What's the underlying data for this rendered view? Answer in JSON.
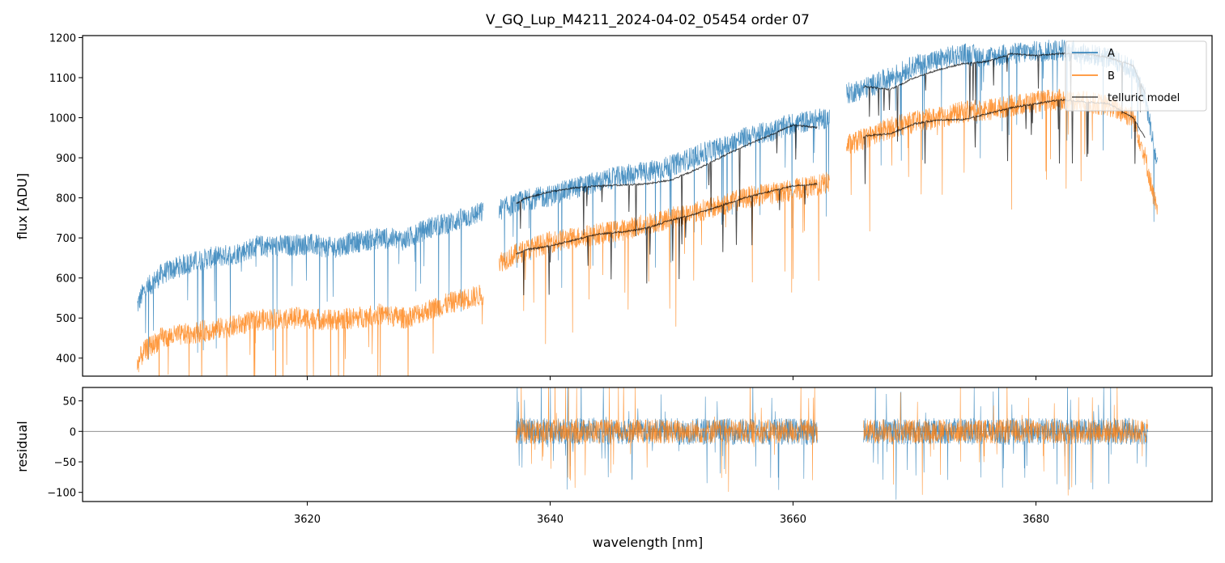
{
  "chart_data": [
    {
      "type": "line",
      "title": "V_GQ_Lup_M4211_2024-04-02_05454  order 07",
      "xlabel": "",
      "ylabel": "flux [ADU]",
      "xlim": [
        3601.5,
        3694.5
      ],
      "ylim": [
        355,
        1205
      ],
      "x_ticks": [
        3620,
        3640,
        3660,
        3680
      ],
      "y_ticks": [
        400,
        500,
        600,
        700,
        800,
        900,
        1000,
        1100,
        1200
      ],
      "y_tick_labels": [
        "400",
        "500",
        "600",
        "700",
        "800",
        "900",
        "1000",
        "1100",
        "1200"
      ],
      "grid": false,
      "legend_position": "top-right",
      "series": [
        {
          "name": "A",
          "color": "#1f77b4",
          "segments": [
            {
              "x": [
                3606.0,
                3606.5,
                3608.0,
                3610.0,
                3612.0,
                3614.0,
                3616.0,
                3618.0,
                3620.0,
                3622.0,
                3624.0,
                3626.0,
                3628.0,
                3630.0,
                3632.0,
                3634.0,
                3634.5
              ],
              "y": [
                530,
                565,
                610,
                635,
                650,
                660,
                680,
                680,
                685,
                675,
                690,
                700,
                695,
                725,
                740,
                760,
                765
              ]
            },
            {
              "x": [
                3635.8,
                3638.0,
                3640.0,
                3642.0,
                3644.0,
                3646.0,
                3648.0,
                3650.0,
                3652.0,
                3654.0,
                3656.0,
                3658.0,
                3660.0,
                3662.0,
                3663.0
              ],
              "y": [
                770,
                795,
                805,
                825,
                840,
                855,
                865,
                880,
                905,
                925,
                950,
                965,
                985,
                995,
                1000
              ]
            },
            {
              "x": [
                3664.4,
                3666.0,
                3668.0,
                3670.0,
                3672.0,
                3674.0,
                3676.0,
                3678.0,
                3680.0,
                3682.0,
                3684.0,
                3686.0,
                3688.0,
                3689.0,
                3690.0
              ],
              "y": [
                1060,
                1075,
                1100,
                1130,
                1145,
                1160,
                1150,
                1160,
                1165,
                1170,
                1160,
                1150,
                1120,
                1050,
                880
              ]
            }
          ]
        },
        {
          "name": "B",
          "color": "#ff7f0e",
          "segments": [
            {
              "x": [
                3606.0,
                3606.5,
                3608.0,
                3610.0,
                3612.0,
                3614.0,
                3616.0,
                3618.0,
                3620.0,
                3622.0,
                3624.0,
                3626.0,
                3628.0,
                3630.0,
                3632.0,
                3634.0,
                3634.5
              ],
              "y": [
                385,
                415,
                450,
                460,
                470,
                480,
                495,
                500,
                500,
                495,
                500,
                510,
                500,
                520,
                540,
                555,
                560
              ]
            },
            {
              "x": [
                3635.8,
                3638.0,
                3640.0,
                3642.0,
                3644.0,
                3646.0,
                3648.0,
                3650.0,
                3652.0,
                3654.0,
                3656.0,
                3658.0,
                3660.0,
                3662.0,
                3663.0
              ],
              "y": [
                640,
                670,
                690,
                700,
                710,
                720,
                735,
                750,
                765,
                780,
                800,
                810,
                820,
                830,
                840
              ]
            },
            {
              "x": [
                3664.4,
                3666.0,
                3668.0,
                3670.0,
                3672.0,
                3674.0,
                3676.0,
                3678.0,
                3680.0,
                3682.0,
                3684.0,
                3686.0,
                3688.0,
                3689.0,
                3690.0
              ],
              "y": [
                930,
                950,
                975,
                990,
                1000,
                1015,
                1020,
                1030,
                1040,
                1045,
                1040,
                1030,
                1000,
                900,
                760
              ]
            }
          ]
        },
        {
          "name": "telluric model",
          "color": "#000000",
          "segments": [
            {
              "x": [
                3637.2,
                3638.0,
                3640.0,
                3642.0,
                3644.0,
                3646.0,
                3648.0,
                3650.0,
                3652.0,
                3654.0,
                3656.0,
                3658.0,
                3660.0,
                3662.0
              ],
              "y": [
                785,
                800,
                815,
                825,
                830,
                832,
                835,
                845,
                870,
                900,
                930,
                955,
                982,
                975
              ]
            },
            {
              "x": [
                3637.2,
                3638.0,
                3640.0,
                3642.0,
                3644.0,
                3646.0,
                3648.0,
                3650.0,
                3652.0,
                3654.0,
                3656.0,
                3658.0,
                3660.0,
                3662.0
              ],
              "y": [
                660,
                670,
                680,
                695,
                710,
                715,
                725,
                745,
                760,
                780,
                800,
                815,
                830,
                835
              ]
            },
            {
              "x": [
                3665.8,
                3666.0,
                3668.0,
                3670.0,
                3672.0,
                3674.0,
                3676.0,
                3678.0,
                3680.0,
                3682.0,
                3684.0,
                3686.0,
                3688.0,
                3689.0
              ],
              "y": [
                1075,
                1078,
                1070,
                1100,
                1120,
                1135,
                1140,
                1160,
                1155,
                1160,
                1160,
                1150,
                1130,
                1060
              ]
            },
            {
              "x": [
                3665.8,
                3666.0,
                3668.0,
                3670.0,
                3672.0,
                3674.0,
                3676.0,
                3678.0,
                3680.0,
                3682.0,
                3684.0,
                3686.0,
                3688.0,
                3689.0
              ],
              "y": [
                950,
                955,
                960,
                985,
                995,
                995,
                1010,
                1025,
                1035,
                1045,
                1040,
                1035,
                1000,
                950
              ]
            }
          ]
        }
      ]
    },
    {
      "type": "line",
      "title": "",
      "xlabel": "wavelength [nm]",
      "ylabel": "residual",
      "xlim": [
        3601.5,
        3694.5
      ],
      "ylim": [
        -115,
        72
      ],
      "x_ticks": [
        3620,
        3640,
        3660,
        3680
      ],
      "x_tick_labels": [
        "3620",
        "3640",
        "3660",
        "3680"
      ],
      "y_ticks": [
        50,
        0,
        -50,
        -100
      ],
      "y_tick_labels": [
        "50",
        "0",
        "−50",
        "−100"
      ],
      "zero_line": true,
      "series": [
        {
          "name": "A",
          "color": "#1f77b4",
          "ranges": [
            [
              3637.2,
              3662.0
            ],
            [
              3665.8,
              3689.2
            ]
          ],
          "amplitude": 22
        },
        {
          "name": "B",
          "color": "#ff7f0e",
          "ranges": [
            [
              3637.2,
              3662.0
            ],
            [
              3665.8,
              3689.2
            ]
          ],
          "amplitude": 20
        }
      ]
    }
  ]
}
